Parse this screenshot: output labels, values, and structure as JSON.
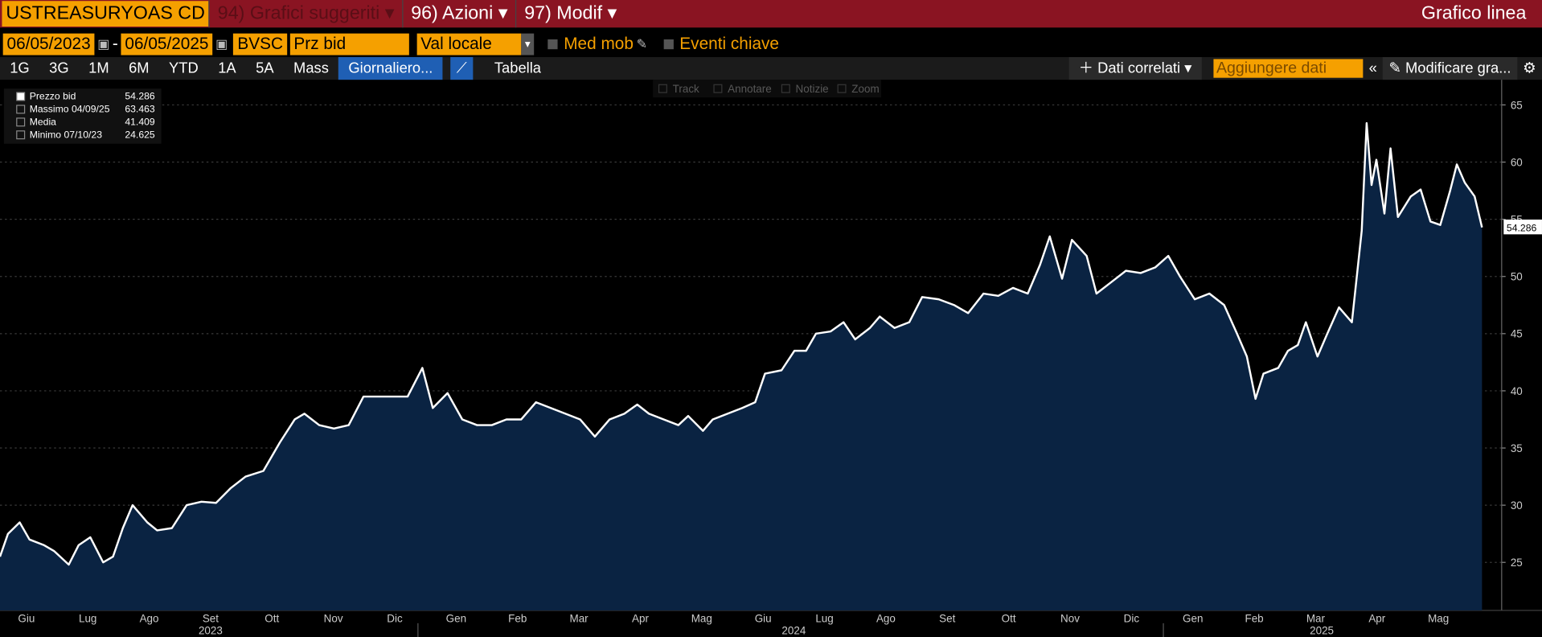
{
  "toolbar": {
    "security": "USTREASURYOAS CD",
    "menu": [
      "94) Grafici suggeriti",
      "96) Azioni",
      "97) Modif"
    ],
    "chart_type": "Grafico linea"
  },
  "controls": {
    "start_date": "06/05/2023",
    "date_separator": "-",
    "end_date": "06/05/2025",
    "source": "BVSC",
    "field": "Prz bid",
    "currency": "Val locale",
    "moving_avg": "Med mob",
    "key_events": "Eventi chiave"
  },
  "periods": [
    "1G",
    "3G",
    "1M",
    "6M",
    "YTD",
    "1A",
    "5A",
    "Mass"
  ],
  "frequency": "Giornaliero...",
  "table_tab": "Tabella",
  "related": "Dati correlati",
  "add_data": "Aggiungere dati",
  "edit_chart": "Modificare gra...",
  "chart_tools": [
    "Track",
    "Annotare",
    "Notizie",
    "Zoom"
  ],
  "chart_data": {
    "type": "area",
    "legend": [
      {
        "label": "Massimo 04/09/25",
        "value": "63.463"
      },
      {
        "label": "Media",
        "value": "41.409"
      },
      {
        "label": "Minimo 07/10/23",
        "value": "24.625"
      }
    ],
    "legend_first_value": "54.286",
    "last_value_label": "54.286",
    "series": [
      {
        "name": "Prezzo bid",
        "color": "#ffffff",
        "fill": "#0a2342",
        "x": [
          0.07,
          0.2,
          0.39,
          0.55,
          0.79,
          0.95,
          1.19,
          1.35,
          1.54,
          1.75,
          1.91,
          2.07,
          2.23,
          2.47,
          2.63,
          2.87,
          3.11,
          3.35,
          3.59,
          3.83,
          4.07,
          4.36,
          4.63,
          4.87,
          5.03,
          5.27,
          5.51,
          5.75,
          5.99,
          6.23,
          6.47,
          6.71,
          6.95,
          7.12,
          7.36,
          7.6,
          7.84,
          8.08,
          8.32,
          8.56,
          8.8,
          9.04,
          9.28,
          9.52,
          9.76,
          10.0,
          10.24,
          10.45,
          10.64,
          10.88,
          11.12,
          11.28,
          11.52,
          11.68,
          11.92,
          12.16,
          12.37,
          12.53,
          12.8,
          13.01,
          13.2,
          13.36,
          13.6,
          13.81,
          14.0,
          14.24,
          14.4,
          14.64,
          14.88,
          15.09,
          15.36,
          15.61,
          15.84,
          16.09,
          16.33,
          16.57,
          16.81,
          17.01,
          17.17,
          17.37,
          17.53,
          17.77,
          17.93,
          18.17,
          18.41,
          18.65,
          18.89,
          19.1,
          19.29,
          19.53,
          19.77,
          20.01,
          20.22,
          20.38,
          20.52,
          20.65,
          20.89,
          21.05,
          21.21,
          21.34,
          21.53,
          21.69,
          21.88,
          22.09,
          22.25,
          22.33,
          22.41,
          22.49,
          22.62,
          22.72,
          22.84,
          23.05,
          23.21,
          23.37,
          23.53,
          23.69,
          23.8,
          23.93,
          24.09,
          24.21
        ],
        "values": [
          25.5,
          27.5,
          28.5,
          27,
          26.5,
          26,
          24.8,
          26.5,
          27.2,
          25,
          25.5,
          28,
          30,
          28.5,
          27.8,
          28,
          30,
          30.3,
          30.2,
          31.5,
          32.5,
          33,
          35.5,
          37.5,
          38,
          37,
          36.7,
          37,
          39.5,
          39.5,
          39.5,
          39.5,
          42,
          38.5,
          39.8,
          37.5,
          37,
          37,
          37.5,
          37.5,
          39,
          38.5,
          38,
          37.5,
          36,
          37.5,
          38,
          38.8,
          38,
          37.5,
          37,
          37.8,
          36.5,
          37.5,
          38,
          38.5,
          39,
          41.5,
          41.8,
          43.5,
          43.5,
          45,
          45.2,
          46,
          44.5,
          45.5,
          46.5,
          45.5,
          46,
          48.2,
          48,
          47.5,
          46.8,
          48.5,
          48.3,
          49,
          48.5,
          51,
          53.5,
          49.8,
          53.2,
          51.8,
          48.5,
          49.5,
          50.5,
          50.3,
          50.8,
          51.8,
          50,
          48,
          48.5,
          47.5,
          45,
          43,
          39.3,
          41.5,
          42,
          43.5,
          44,
          46,
          43,
          45,
          47.3,
          46,
          54,
          63.4,
          58,
          60.2,
          55.5,
          61.2,
          55.2,
          57,
          57.6,
          54.8,
          54.5,
          57.5,
          59.8,
          58.2,
          57,
          54.286
        ]
      }
    ],
    "xlim": [
      0.07,
      24.53
    ],
    "ylim": [
      20.8,
      67.2
    ],
    "xticks": [
      {
        "value": 0.5,
        "label": "Giu"
      },
      {
        "value": 1.5,
        "label": "Lug"
      },
      {
        "value": 2.5,
        "label": "Ago"
      },
      {
        "value": 3.5,
        "label": "Set"
      },
      {
        "value": 4.5,
        "label": "Ott"
      },
      {
        "value": 5.5,
        "label": "Nov"
      },
      {
        "value": 6.5,
        "label": "Dic"
      },
      {
        "value": 7.5,
        "label": "Gen"
      },
      {
        "value": 8.5,
        "label": "Feb"
      },
      {
        "value": 9.5,
        "label": "Mar"
      },
      {
        "value": 10.5,
        "label": "Apr"
      },
      {
        "value": 11.5,
        "label": "Mag"
      },
      {
        "value": 12.5,
        "label": "Giu"
      },
      {
        "value": 13.5,
        "label": "Lug"
      },
      {
        "value": 14.5,
        "label": "Ago"
      },
      {
        "value": 15.5,
        "label": "Set"
      },
      {
        "value": 16.5,
        "label": "Ott"
      },
      {
        "value": 17.5,
        "label": "Nov"
      },
      {
        "value": 18.5,
        "label": "Dic"
      },
      {
        "value": 19.5,
        "label": "Gen"
      },
      {
        "value": 20.5,
        "label": "Feb"
      },
      {
        "value": 21.5,
        "label": "Mar"
      },
      {
        "value": 22.5,
        "label": "Apr"
      },
      {
        "value": 23.5,
        "label": "Mag"
      }
    ],
    "year_ticks": [
      {
        "value": 3.5,
        "label": "2023"
      },
      {
        "value": 13,
        "label": "2024"
      },
      {
        "value": 21.6,
        "label": "2025"
      }
    ],
    "yticks": [
      25,
      30,
      35,
      40,
      45,
      50,
      55,
      60,
      65
    ],
    "grid": true
  }
}
